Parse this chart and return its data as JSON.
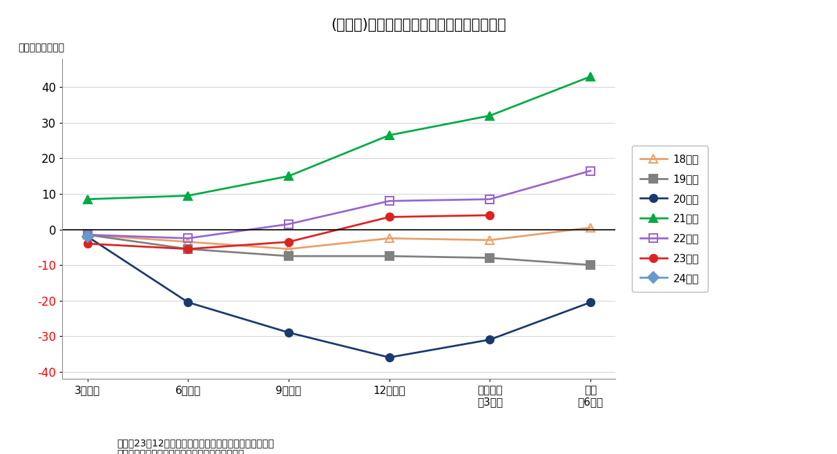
{
  "title": "(図表８)　経常利益計画（全規模・全産業）",
  "ylabel": "（対前年比、％）",
  "note1": "（注）23年12月調査以降は調査対象見直し後の新ベース",
  "note2": "（資料）日本銀行「全国企業短期経済観測調査」",
  "x_labels": [
    "3月調査",
    "6月調査",
    "9月調査",
    "12月調査",
    "実績見込\n（3月）",
    "実績\n（6月）"
  ],
  "ylim": [
    -42,
    48
  ],
  "yticks": [
    -40,
    -30,
    -20,
    -10,
    0,
    10,
    20,
    30,
    40
  ],
  "series": [
    {
      "label": "18年度",
      "color": "#E8A06A",
      "marker": "^",
      "marker_face": "none",
      "marker_edge": "#E8A06A",
      "data": [
        -1.5,
        -3.5,
        -5.5,
        -2.5,
        -3.0,
        0.5
      ]
    },
    {
      "label": "19年度",
      "color": "#808080",
      "marker": "s",
      "marker_face": "#808080",
      "marker_edge": "#808080",
      "data": [
        -1.5,
        -5.5,
        -7.5,
        -7.5,
        -8.0,
        -10.0
      ]
    },
    {
      "label": "20年度",
      "color": "#1a3a6e",
      "marker": "o",
      "marker_face": "#1a3a6e",
      "marker_edge": "#1a3a6e",
      "data": [
        -2.0,
        -20.5,
        -29.0,
        -36.0,
        -31.0,
        -20.5
      ]
    },
    {
      "label": "21年度",
      "color": "#00AA44",
      "marker": "^",
      "marker_face": "#00AA44",
      "marker_edge": "#00AA44",
      "data": [
        8.5,
        9.5,
        15.0,
        26.5,
        32.0,
        43.0
      ]
    },
    {
      "label": "22年度",
      "color": "#9966CC",
      "marker": "s",
      "marker_face": "none",
      "marker_edge": "#9966CC",
      "data": [
        -1.5,
        -2.5,
        1.5,
        8.0,
        8.5,
        16.5
      ]
    },
    {
      "label": "23年度",
      "color": "#DD2222",
      "marker": "o",
      "marker_face": "#DD2222",
      "marker_edge": "#DD2222",
      "data": [
        -4.0,
        -5.5,
        -3.5,
        3.5,
        4.0,
        null
      ]
    },
    {
      "label": "24年度",
      "color": "#6699CC",
      "marker": "D",
      "marker_face": "#6699CC",
      "marker_edge": "#6699CC",
      "data": [
        -2.0,
        null,
        null,
        null,
        null,
        null
      ]
    }
  ]
}
